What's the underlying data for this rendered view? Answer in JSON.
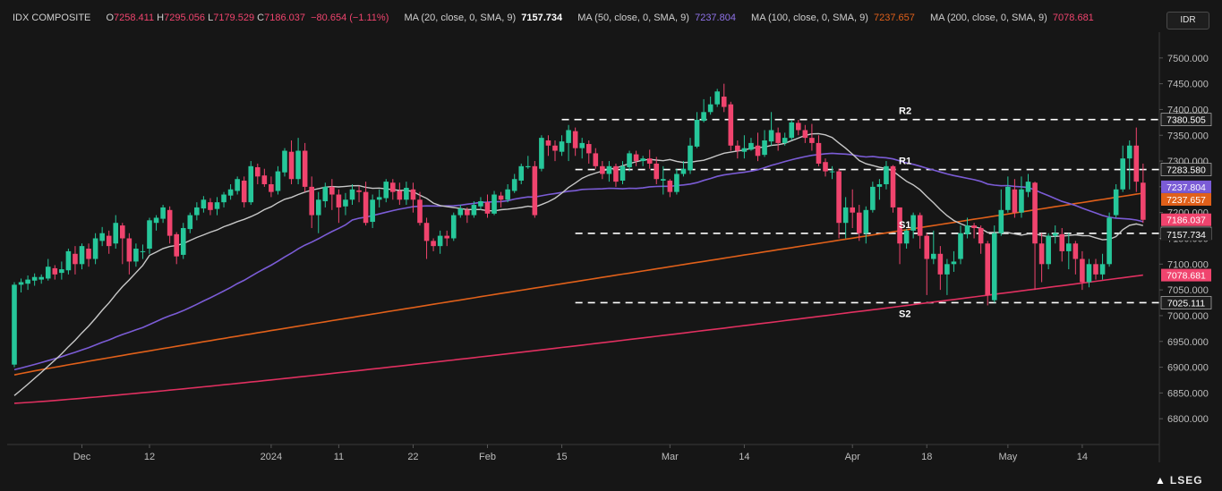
{
  "header": {
    "symbol": "IDX COMPOSITE",
    "o_label": "O",
    "o_value": "7258.411",
    "h_label": "H",
    "h_value": "7295.056",
    "l_label": "L",
    "l_value": "7179.529",
    "c_label": "C",
    "c_value": "7186.037",
    "change": "−80.654 (−1.11%)",
    "ma20_label": "MA (20, close, 0, SMA, 9)",
    "ma20_value": "7157.734",
    "ma50_label": "MA (50, close, 0, SMA, 9)",
    "ma50_value": "7237.804",
    "ma100_label": "MA (100, close, 0, SMA, 9)",
    "ma100_value": "7237.657",
    "ma200_label": "MA (200, close, 0, SMA, 9)",
    "ma200_value": "7078.681"
  },
  "currency_button": "IDR",
  "brand": "LSEG",
  "colors": {
    "up": "#26c79a",
    "down": "#f0446e",
    "background": "#161616",
    "ma20": "#c8c8c8",
    "ma50": "#7b5cd6",
    "ma100": "#e0601a",
    "ma200": "#e03060",
    "level_line": "#ffffff"
  },
  "chart_data": {
    "type": "candlestick",
    "ylim": [
      6750,
      7550
    ],
    "y_ticks": [
      "7500.000",
      "7450.000",
      "7400.000",
      "7350.000",
      "7300.000",
      "7250.000",
      "7200.000",
      "7150.000",
      "7100.000",
      "7050.000",
      "7000.000",
      "6950.000",
      "6900.000",
      "6850.000",
      "6800.000"
    ],
    "x_ticks": [
      {
        "label": "Dec",
        "index": 10
      },
      {
        "label": "12",
        "index": 20
      },
      {
        "label": "2024",
        "index": 38
      },
      {
        "label": "11",
        "index": 48
      },
      {
        "label": "22",
        "index": 59
      },
      {
        "label": "Feb",
        "index": 70
      },
      {
        "label": "15",
        "index": 81
      },
      {
        "label": "Mar",
        "index": 97
      },
      {
        "label": "14",
        "index": 108
      },
      {
        "label": "Apr",
        "index": 124
      },
      {
        "label": "18",
        "index": 135
      },
      {
        "label": "May",
        "index": 147
      },
      {
        "label": "14",
        "index": 158
      }
    ],
    "levels": [
      {
        "name": "R2",
        "value": 7380.505,
        "label": "7380.505",
        "start_index": 81
      },
      {
        "name": "R1",
        "value": 7283.58,
        "label": "7283.580",
        "start_index": 83
      },
      {
        "name": "S1",
        "value": 7159.708,
        "label": "7159.708",
        "start_index": 83
      },
      {
        "name": "S2",
        "value": 7025.111,
        "label": "7025.111",
        "start_index": 83
      }
    ],
    "price_tags": [
      {
        "label": "7237.804",
        "value": 7237.804,
        "color": "#7b5cd6"
      },
      {
        "label": "7237.657",
        "value": 7237.657,
        "color": "#e0601a"
      },
      {
        "label": "7186.037",
        "value": 7186.037,
        "color": "#f0446e"
      },
      {
        "label": "7157.734",
        "value": 7157.734,
        "color": "#1e1e1e"
      },
      {
        "label": "7078.681",
        "value": 7078.681,
        "color": "#f0446e"
      }
    ],
    "candles": [
      [
        6905,
        7060,
        6900,
        7065
      ],
      [
        7060,
        7065,
        7045,
        7072
      ],
      [
        7062,
        7070,
        7050,
        7078
      ],
      [
        7068,
        7075,
        7058,
        7082
      ],
      [
        7070,
        7075,
        7062,
        7080
      ],
      [
        7072,
        7095,
        7068,
        7110
      ],
      [
        7092,
        7080,
        7070,
        7098
      ],
      [
        7083,
        7090,
        7070,
        7105
      ],
      [
        7088,
        7125,
        7080,
        7130
      ],
      [
        7120,
        7100,
        7080,
        7135
      ],
      [
        7100,
        7135,
        7090,
        7140
      ],
      [
        7130,
        7110,
        7095,
        7140
      ],
      [
        7110,
        7150,
        7100,
        7160
      ],
      [
        7145,
        7160,
        7135,
        7172
      ],
      [
        7155,
        7135,
        7120,
        7165
      ],
      [
        7140,
        7180,
        7130,
        7195
      ],
      [
        7175,
        7150,
        7100,
        7180
      ],
      [
        7150,
        7105,
        7080,
        7160
      ],
      [
        7105,
        7130,
        7095,
        7140
      ],
      [
        7125,
        7125,
        7110,
        7138
      ],
      [
        7130,
        7185,
        7120,
        7190
      ],
      [
        7180,
        7190,
        7165,
        7195
      ],
      [
        7188,
        7210,
        7180,
        7215
      ],
      [
        7205,
        7155,
        7140,
        7212
      ],
      [
        7158,
        7115,
        7100,
        7162
      ],
      [
        7118,
        7170,
        7110,
        7180
      ],
      [
        7168,
        7195,
        7160,
        7200
      ],
      [
        7195,
        7210,
        7185,
        7220
      ],
      [
        7208,
        7225,
        7200,
        7232
      ],
      [
        7220,
        7205,
        7195,
        7228
      ],
      [
        7207,
        7220,
        7195,
        7230
      ],
      [
        7220,
        7235,
        7210,
        7240
      ],
      [
        7233,
        7245,
        7225,
        7255
      ],
      [
        7242,
        7265,
        7235,
        7270
      ],
      [
        7262,
        7220,
        7210,
        7270
      ],
      [
        7220,
        7290,
        7215,
        7300
      ],
      [
        7288,
        7270,
        7255,
        7295
      ],
      [
        7272,
        7255,
        7250,
        7285
      ],
      [
        7255,
        7240,
        7230,
        7270
      ],
      [
        7242,
        7280,
        7235,
        7290
      ],
      [
        7278,
        7320,
        7270,
        7325
      ],
      [
        7318,
        7265,
        7255,
        7340
      ],
      [
        7265,
        7320,
        7255,
        7345
      ],
      [
        7320,
        7250,
        7240,
        7335
      ],
      [
        7250,
        7195,
        7170,
        7270
      ],
      [
        7195,
        7225,
        7160,
        7240
      ],
      [
        7222,
        7250,
        7210,
        7258
      ],
      [
        7250,
        7235,
        7205,
        7265
      ],
      [
        7235,
        7210,
        7180,
        7245
      ],
      [
        7212,
        7225,
        7195,
        7238
      ],
      [
        7225,
        7245,
        7215,
        7255
      ],
      [
        7243,
        7240,
        7220,
        7252
      ],
      [
        7240,
        7180,
        7175,
        7260
      ],
      [
        7182,
        7225,
        7170,
        7235
      ],
      [
        7225,
        7230,
        7210,
        7245
      ],
      [
        7228,
        7260,
        7220,
        7265
      ],
      [
        7258,
        7240,
        7225,
        7265
      ],
      [
        7242,
        7225,
        7215,
        7258
      ],
      [
        7225,
        7248,
        7215,
        7260
      ],
      [
        7245,
        7225,
        7200,
        7258
      ],
      [
        7225,
        7180,
        7175,
        7240
      ],
      [
        7180,
        7145,
        7110,
        7190
      ],
      [
        7145,
        7135,
        7125,
        7150
      ],
      [
        7135,
        7155,
        7120,
        7165
      ],
      [
        7155,
        7150,
        7135,
        7165
      ],
      [
        7150,
        7195,
        7145,
        7200
      ],
      [
        7195,
        7208,
        7190,
        7215
      ],
      [
        7205,
        7195,
        7180,
        7210
      ],
      [
        7195,
        7215,
        7190,
        7222
      ],
      [
        7212,
        7222,
        7205,
        7230
      ],
      [
        7220,
        7198,
        7190,
        7235
      ],
      [
        7198,
        7235,
        7195,
        7242
      ],
      [
        7233,
        7225,
        7210,
        7240
      ],
      [
        7225,
        7245,
        7220,
        7255
      ],
      [
        7242,
        7265,
        7238,
        7275
      ],
      [
        7262,
        7290,
        7255,
        7295
      ],
      [
        7288,
        7290,
        7285,
        7310
      ],
      [
        7290,
        7195,
        7190,
        7300
      ],
      [
        7285,
        7345,
        7280,
        7350
      ],
      [
        7340,
        7330,
        7310,
        7350
      ],
      [
        7330,
        7320,
        7300,
        7340
      ],
      [
        7318,
        7338,
        7310,
        7350
      ],
      [
        7335,
        7360,
        7300,
        7370
      ],
      [
        7358,
        7325,
        7310,
        7365
      ],
      [
        7325,
        7335,
        7305,
        7345
      ],
      [
        7333,
        7315,
        7295,
        7340
      ],
      [
        7315,
        7290,
        7285,
        7325
      ],
      [
        7290,
        7275,
        7265,
        7300
      ],
      [
        7275,
        7290,
        7260,
        7300
      ],
      [
        7290,
        7260,
        7250,
        7295
      ],
      [
        7262,
        7290,
        7255,
        7300
      ],
      [
        7288,
        7315,
        7280,
        7320
      ],
      [
        7313,
        7300,
        7290,
        7320
      ],
      [
        7300,
        7305,
        7290,
        7310
      ],
      [
        7305,
        7295,
        7285,
        7322
      ],
      [
        7295,
        7265,
        7255,
        7308
      ],
      [
        7262,
        7265,
        7235,
        7290
      ],
      [
        7262,
        7240,
        7230,
        7265
      ],
      [
        7240,
        7275,
        7235,
        7285
      ],
      [
        7275,
        7285,
        7270,
        7300
      ],
      [
        7282,
        7330,
        7275,
        7345
      ],
      [
        7328,
        7380,
        7325,
        7395
      ],
      [
        7378,
        7395,
        7375,
        7420
      ],
      [
        7395,
        7410,
        7390,
        7425
      ],
      [
        7410,
        7435,
        7405,
        7440
      ],
      [
        7425,
        7405,
        7395,
        7450
      ],
      [
        7410,
        7330,
        7320,
        7415
      ],
      [
        7330,
        7320,
        7305,
        7340
      ],
      [
        7318,
        7325,
        7305,
        7350
      ],
      [
        7322,
        7335,
        7320,
        7345
      ],
      [
        7330,
        7310,
        7300,
        7355
      ],
      [
        7312,
        7340,
        7308,
        7360
      ],
      [
        7338,
        7360,
        7330,
        7395
      ],
      [
        7355,
        7335,
        7320,
        7365
      ],
      [
        7335,
        7345,
        7330,
        7355
      ],
      [
        7345,
        7375,
        7340,
        7380
      ],
      [
        7374,
        7360,
        7350,
        7380
      ],
      [
        7360,
        7345,
        7335,
        7370
      ],
      [
        7345,
        7335,
        7320,
        7372
      ],
      [
        7335,
        7295,
        7290,
        7350
      ],
      [
        7298,
        7280,
        7270,
        7305
      ],
      [
        7280,
        7280,
        7265,
        7290
      ],
      [
        7280,
        7180,
        7150,
        7285
      ],
      [
        7180,
        7210,
        7150,
        7230
      ],
      [
        7210,
        7200,
        7170,
        7245
      ],
      [
        7200,
        7160,
        7145,
        7215
      ],
      [
        7160,
        7205,
        7140,
        7212
      ],
      [
        7205,
        7250,
        7200,
        7260
      ],
      [
        7250,
        7255,
        7225,
        7265
      ],
      [
        7255,
        7290,
        7245,
        7300
      ],
      [
        7290,
        7210,
        7200,
        7292
      ],
      [
        7210,
        7140,
        7100,
        7210
      ],
      [
        7140,
        7165,
        7130,
        7168
      ],
      [
        7165,
        7195,
        7150,
        7200
      ],
      [
        7195,
        7155,
        7130,
        7200
      ],
      [
        7155,
        7110,
        7040,
        7160
      ],
      [
        7110,
        7120,
        7100,
        7165
      ],
      [
        7120,
        7080,
        7050,
        7135
      ],
      [
        7080,
        7100,
        7040,
        7110
      ],
      [
        7100,
        7105,
        7085,
        7125
      ],
      [
        7110,
        7160,
        7100,
        7175
      ],
      [
        7158,
        7175,
        7150,
        7190
      ],
      [
        7175,
        7170,
        7150,
        7180
      ],
      [
        7170,
        7140,
        7120,
        7175
      ],
      [
        7140,
        7040,
        7020,
        7145
      ],
      [
        7030,
        7160,
        7025,
        7175
      ],
      [
        7160,
        7205,
        7155,
        7245
      ],
      [
        7205,
        7250,
        7200,
        7270
      ],
      [
        7245,
        7200,
        7190,
        7265
      ],
      [
        7200,
        7245,
        7190,
        7270
      ],
      [
        7240,
        7260,
        7230,
        7275
      ],
      [
        7258,
        7140,
        7050,
        7260
      ],
      [
        7140,
        7100,
        7065,
        7160
      ],
      [
        7100,
        7155,
        7090,
        7160
      ],
      [
        7155,
        7160,
        7140,
        7175
      ],
      [
        7158,
        7125,
        7105,
        7170
      ],
      [
        7125,
        7140,
        7090,
        7160
      ],
      [
        7140,
        7110,
        7080,
        7145
      ],
      [
        7110,
        7065,
        7050,
        7125
      ],
      [
        7065,
        7100,
        7055,
        7110
      ],
      [
        7100,
        7080,
        7070,
        7110
      ],
      [
        7080,
        7100,
        7070,
        7120
      ],
      [
        7100,
        7190,
        7095,
        7200
      ],
      [
        7195,
        7245,
        7190,
        7255
      ],
      [
        7245,
        7305,
        7240,
        7330
      ],
      [
        7305,
        7330,
        7245,
        7340
      ],
      [
        7330,
        7260,
        7240,
        7365
      ],
      [
        7258,
        7186,
        7180,
        7295
      ]
    ]
  }
}
